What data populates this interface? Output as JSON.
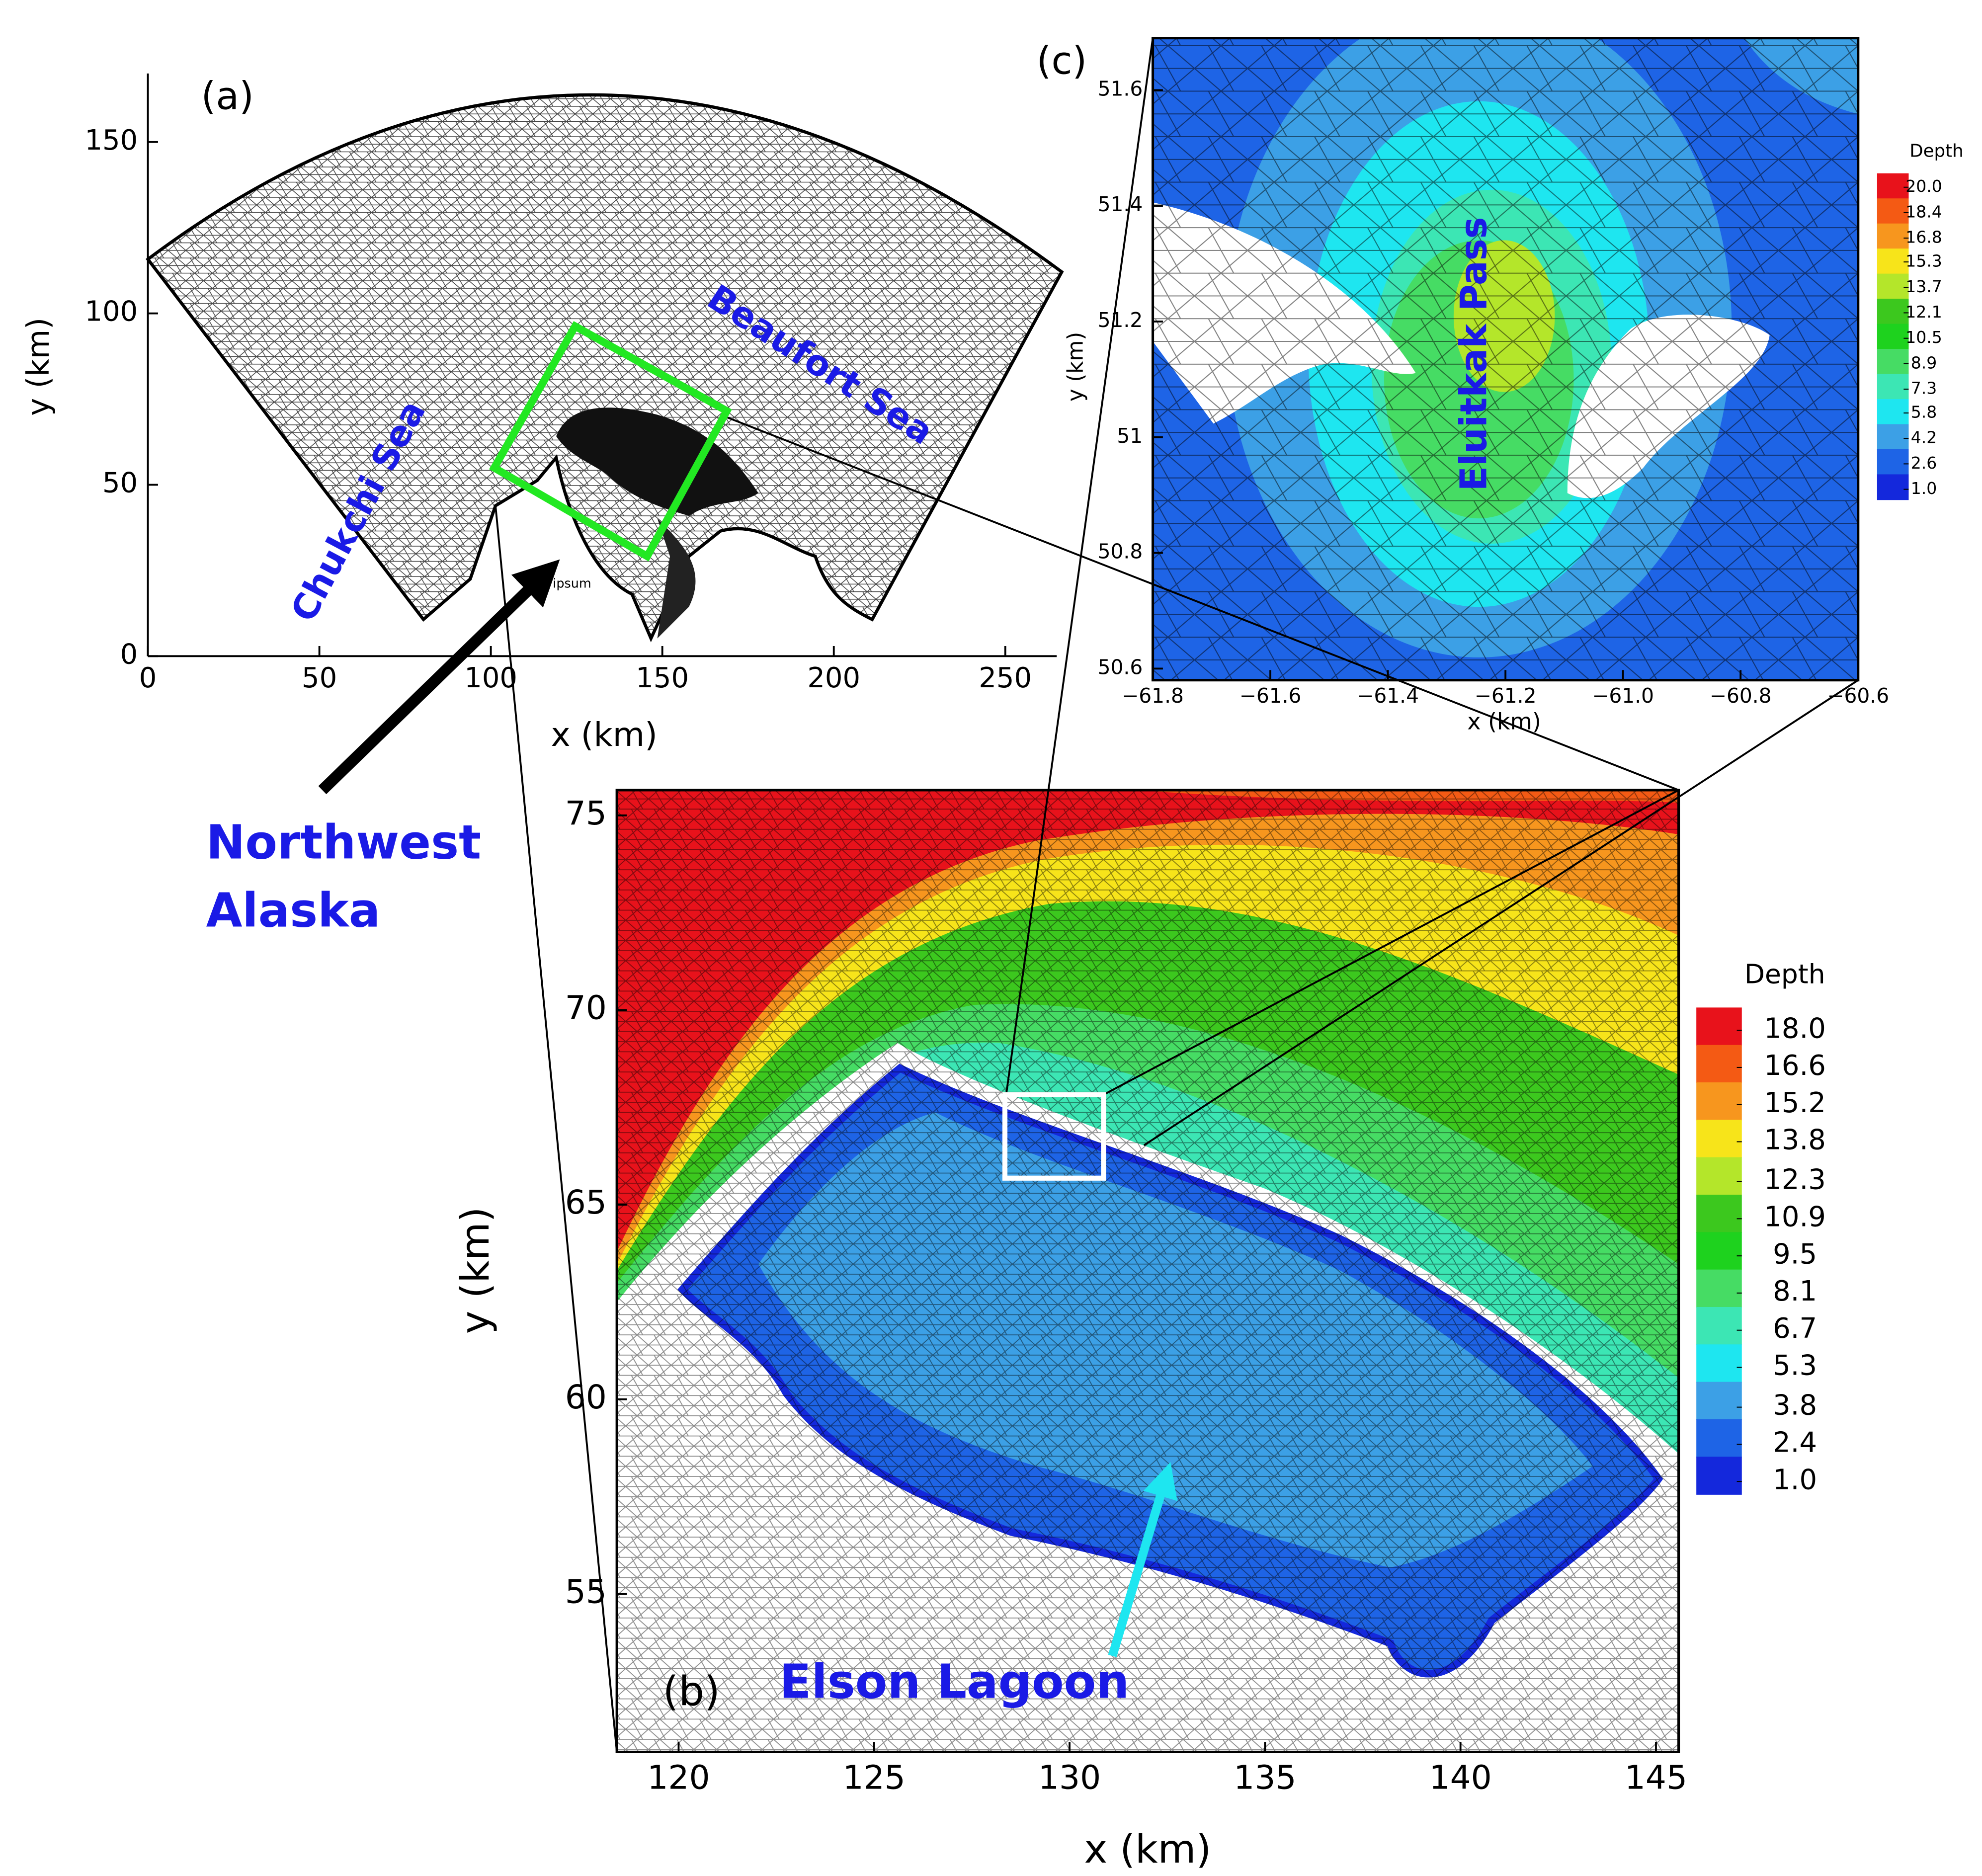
{
  "chart_data": [
    {
      "type": "mesh",
      "panel_label": "(a)",
      "x_label": "x (km)",
      "y_label": "y (km)",
      "xlim": [
        0,
        265
      ],
      "ylim": [
        0,
        170
      ],
      "xticks": [
        0,
        50,
        100,
        150,
        200,
        250
      ],
      "yticks": [
        0,
        50,
        100,
        150
      ],
      "annotations": [
        {
          "text": "Chukchi Sea"
        },
        {
          "text": "Beaufort Sea"
        },
        {
          "text": "Northwest Alaska"
        },
        {
          "text": "em ipsum"
        }
      ],
      "box_color": "#22e822"
    },
    {
      "type": "contour",
      "panel_label": "(b)",
      "x_label": "x (km)",
      "y_label": "y (km)",
      "xlim": [
        118.42,
        145.58
      ],
      "ylim": [
        50.94,
        75.65
      ],
      "xticks": [
        120,
        125,
        130,
        135,
        140,
        145
      ],
      "yticks": [
        55,
        60,
        65,
        70,
        75
      ],
      "annotations": [
        {
          "text": "Elson Lagoon"
        }
      ],
      "colorbar": {
        "title": "Depth",
        "ticks": [
          {
            "value": 18.0,
            "label": "18.0"
          },
          {
            "value": 16.6,
            "label": "16.6"
          },
          {
            "value": 15.2,
            "label": "15.2"
          },
          {
            "value": 13.8,
            "label": "13.8"
          },
          {
            "value": 12.3,
            "label": "12.3"
          },
          {
            "value": 10.9,
            "label": "10.9"
          },
          {
            "value": 9.5,
            "label": "9.5"
          },
          {
            "value": 8.1,
            "label": "8.1"
          },
          {
            "value": 6.7,
            "label": "6.7"
          },
          {
            "value": 5.3,
            "label": "5.3"
          },
          {
            "value": 3.8,
            "label": "3.8"
          },
          {
            "value": 2.4,
            "label": "2.4"
          },
          {
            "value": 1.0,
            "label": "1.0"
          }
        ],
        "colors": [
          "#e8121b",
          "#f45a14",
          "#f7961e",
          "#f7e41a",
          "#b4e62a",
          "#3cc81e",
          "#1ed21e",
          "#46dc64",
          "#3ce6b4",
          "#1ee6f0",
          "#3ca0e6",
          "#1e64e6",
          "#1428dc"
        ]
      }
    },
    {
      "type": "contour",
      "panel_label": "(c)",
      "x_label": "x (km)",
      "y_label": "y (km)",
      "xlim": [
        -61.8,
        -60.6
      ],
      "ylim": [
        50.58,
        51.69
      ],
      "xticks": [
        {
          "value": -61.8,
          "label": "−61.8"
        },
        {
          "value": -61.6,
          "label": "−61.6"
        },
        {
          "value": -61.4,
          "label": "−61.4"
        },
        {
          "value": -61.2,
          "label": "−61.2"
        },
        {
          "value": -61.0,
          "label": "−61.0"
        },
        {
          "value": -60.8,
          "label": "−60.8"
        },
        {
          "value": -60.6,
          "label": "−60.6"
        }
      ],
      "yticks": [
        50.6,
        50.8,
        51,
        51.2,
        51.4,
        51.6
      ],
      "annotations": [
        {
          "text": "Eluitkak Pass"
        }
      ],
      "colorbar": {
        "title": "Depth",
        "ticks": [
          {
            "value": 20.0,
            "label": "20.0"
          },
          {
            "value": 18.4,
            "label": "18.4"
          },
          {
            "value": 16.8,
            "label": "16.8"
          },
          {
            "value": 15.3,
            "label": "15.3"
          },
          {
            "value": 13.7,
            "label": "13.7"
          },
          {
            "value": 12.1,
            "label": "12.1"
          },
          {
            "value": 10.5,
            "label": "10.5"
          },
          {
            "value": 8.9,
            "label": "8.9"
          },
          {
            "value": 7.3,
            "label": "7.3"
          },
          {
            "value": 5.8,
            "label": "5.8"
          },
          {
            "value": 4.2,
            "label": "4.2"
          },
          {
            "value": 2.6,
            "label": "2.6"
          },
          {
            "value": 1.0,
            "label": "1.0"
          }
        ],
        "colors": [
          "#e8121b",
          "#f45a14",
          "#f7961e",
          "#f7e41a",
          "#b4e62a",
          "#3cc81e",
          "#1ed21e",
          "#46dc64",
          "#3ce6b4",
          "#1ee6f0",
          "#3ca0e6",
          "#1e64e6",
          "#1428dc"
        ]
      }
    }
  ]
}
